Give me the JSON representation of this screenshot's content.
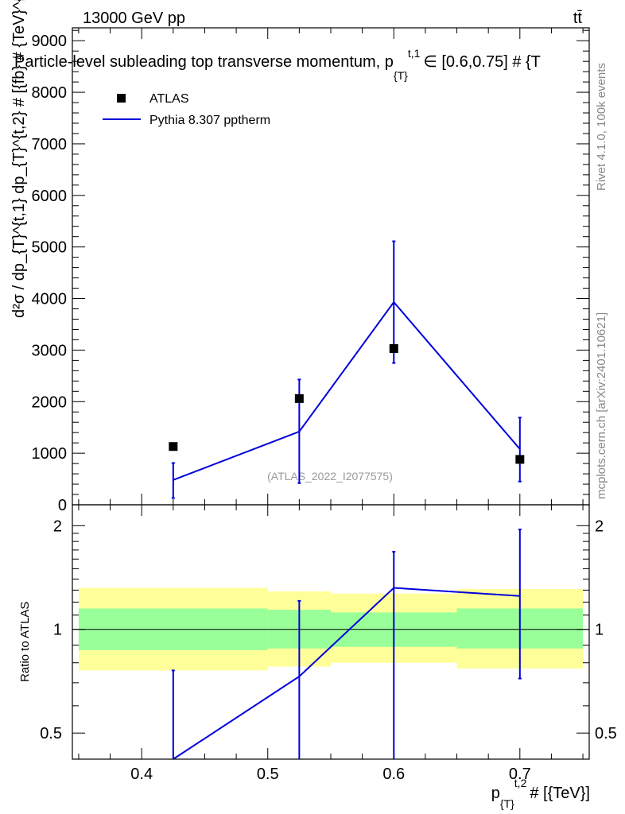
{
  "header": {
    "left": "13000 GeV pp",
    "right": "tt̄",
    "title": "Particle-level subleading top transverse momentum, p",
    "title_sub": "{T}",
    "title_sup": "t,1",
    "title_tail": "∈ [0.6,0.75] # {T"
  },
  "side_labels": {
    "rivet": "Rivet 4.1.0,  100k events",
    "mcplots": "mcplots.cern.ch [arXiv:2401.10621]"
  },
  "watermark": "(ATLAS_2022_I2077575)",
  "legend": {
    "data_label": "ATLAS",
    "mc_label": "Pythia 8.307 pptherm"
  },
  "axes": {
    "ylabel_main": "d²σ / dp_{T}^{t,1} dp_{T}^{t,2} # [{fb} # {TeV}^{-2}]",
    "ylabel_ratio": "Ratio to ATLAS",
    "xlabel_main": "p",
    "xlabel_sub": "{T}",
    "xlabel_sup": "t,2",
    "xlabel_tail": "# [{TeV}]"
  },
  "colors": {
    "data": "#000000",
    "mc": "#0000dd",
    "band_inner": "#99ff99",
    "band_outer": "#ffff99"
  },
  "chart_data": {
    "type": "scatter",
    "x_range": [
      0.345,
      0.755
    ],
    "x_ticks": [
      "0.4",
      "0.5",
      "0.6",
      "0.7"
    ],
    "x_tick_values": [
      0.4,
      0.5,
      0.6,
      0.7
    ],
    "main": {
      "y_range": [
        0,
        9250
      ],
      "y_ticks": [
        "0",
        "1000",
        "2000",
        "3000",
        "4000",
        "5000",
        "6000",
        "7000",
        "8000",
        "9000"
      ],
      "y_tick_values": [
        0,
        1000,
        2000,
        3000,
        4000,
        5000,
        6000,
        7000,
        8000,
        9000
      ],
      "data": {
        "x": [
          0.425,
          0.525,
          0.6,
          0.7
        ],
        "y": [
          1130,
          2060,
          3030,
          880
        ]
      },
      "mc": {
        "x": [
          0.425,
          0.525,
          0.6,
          0.7
        ],
        "y": [
          480,
          1420,
          3930,
          1080
        ],
        "err_low": [
          350,
          1000,
          1180,
          630
        ],
        "err_high": [
          330,
          1010,
          1180,
          610
        ]
      }
    },
    "ratio": {
      "y_range": [
        0.42,
        2.3
      ],
      "y_ticks": [
        "0.5",
        "1",
        "2"
      ],
      "y_tick_values": [
        0.5,
        1,
        2
      ],
      "mc": {
        "x": [
          0.425,
          0.525,
          0.6,
          0.7
        ],
        "y": [
          0.42,
          0.73,
          1.32,
          1.25
        ],
        "err_low": [
          0.42,
          0.42,
          0.4,
          0.72
        ],
        "err_high": [
          0.76,
          1.21,
          1.68,
          1.95
        ]
      },
      "bands": [
        {
          "x0": 0.35,
          "x1": 0.5,
          "inner": [
            0.87,
            1.15
          ],
          "outer": [
            0.76,
            1.32
          ]
        },
        {
          "x0": 0.5,
          "x1": 0.55,
          "inner": [
            0.88,
            1.14
          ],
          "outer": [
            0.78,
            1.29
          ]
        },
        {
          "x0": 0.55,
          "x1": 0.65,
          "inner": [
            0.89,
            1.12
          ],
          "outer": [
            0.8,
            1.27
          ]
        },
        {
          "x0": 0.65,
          "x1": 0.75,
          "inner": [
            0.88,
            1.15
          ],
          "outer": [
            0.77,
            1.31
          ]
        }
      ]
    }
  }
}
